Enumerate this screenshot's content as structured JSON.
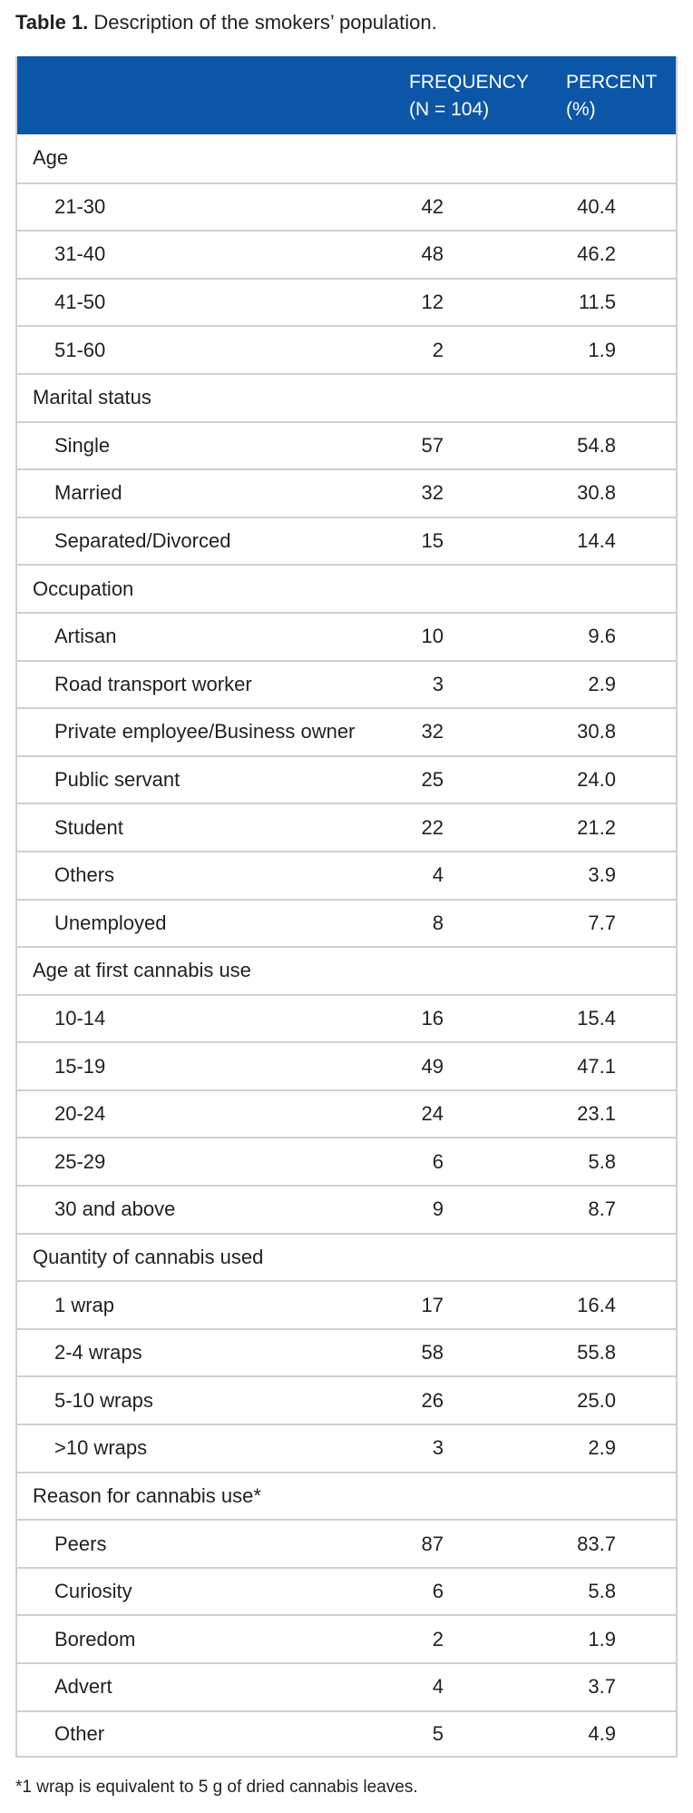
{
  "caption": {
    "label": "Table 1.",
    "text": "Description of the smokers’ population."
  },
  "table": {
    "header": {
      "col_frequency_line1": "FREQUENCY",
      "col_frequency_line2": "(N = 104)",
      "col_percent_line1": "PERCENT",
      "col_percent_line2": "(%)"
    },
    "rows": [
      {
        "type": "section",
        "label": "Age"
      },
      {
        "type": "item",
        "label": "21-30",
        "frequency": "42",
        "percent": "40.4"
      },
      {
        "type": "item",
        "label": "31-40",
        "frequency": "48",
        "percent": "46.2"
      },
      {
        "type": "item",
        "label": "41-50",
        "frequency": "12",
        "percent": "11.5"
      },
      {
        "type": "item",
        "label": "51-60",
        "frequency": "2",
        "percent": "1.9"
      },
      {
        "type": "section",
        "label": "Marital status"
      },
      {
        "type": "item",
        "label": "Single",
        "frequency": "57",
        "percent": "54.8"
      },
      {
        "type": "item",
        "label": "Married",
        "frequency": "32",
        "percent": "30.8"
      },
      {
        "type": "item",
        "label": "Separated/Divorced",
        "frequency": "15",
        "percent": "14.4"
      },
      {
        "type": "section",
        "label": "Occupation"
      },
      {
        "type": "item",
        "label": "Artisan",
        "frequency": "10",
        "percent": "9.6"
      },
      {
        "type": "item",
        "label": "Road transport worker",
        "frequency": "3",
        "percent": "2.9"
      },
      {
        "type": "item",
        "label": "Private employee/Business owner",
        "frequency": "32",
        "percent": "30.8"
      },
      {
        "type": "item",
        "label": "Public servant",
        "frequency": "25",
        "percent": "24.0"
      },
      {
        "type": "item",
        "label": "Student",
        "frequency": "22",
        "percent": "21.2"
      },
      {
        "type": "item",
        "label": "Others",
        "frequency": "4",
        "percent": "3.9"
      },
      {
        "type": "item",
        "label": "Unemployed",
        "frequency": "8",
        "percent": "7.7"
      },
      {
        "type": "section",
        "label": "Age at first cannabis use"
      },
      {
        "type": "item",
        "label": "10-14",
        "frequency": "16",
        "percent": "15.4"
      },
      {
        "type": "item",
        "label": "15-19",
        "frequency": "49",
        "percent": "47.1"
      },
      {
        "type": "item",
        "label": "20-24",
        "frequency": "24",
        "percent": "23.1"
      },
      {
        "type": "item",
        "label": "25-29",
        "frequency": "6",
        "percent": "5.8"
      },
      {
        "type": "item",
        "label": "30 and above",
        "frequency": "9",
        "percent": "8.7"
      },
      {
        "type": "section",
        "label": "Quantity of cannabis used"
      },
      {
        "type": "item",
        "label": "1 wrap",
        "frequency": "17",
        "percent": "16.4"
      },
      {
        "type": "item",
        "label": "2-4 wraps",
        "frequency": "58",
        "percent": "55.8"
      },
      {
        "type": "item",
        "label": "5-10 wraps",
        "frequency": "26",
        "percent": "25.0"
      },
      {
        "type": "item",
        "label": ">10 wraps",
        "frequency": "3",
        "percent": "2.9"
      },
      {
        "type": "section",
        "label": "Reason for cannabis use*"
      },
      {
        "type": "item",
        "label": "Peers",
        "frequency": "87",
        "percent": "83.7"
      },
      {
        "type": "item",
        "label": "Curiosity",
        "frequency": "6",
        "percent": "5.8"
      },
      {
        "type": "item",
        "label": "Boredom",
        "frequency": "2",
        "percent": "1.9"
      },
      {
        "type": "item",
        "label": "Advert",
        "frequency": "4",
        "percent": "3.7"
      },
      {
        "type": "item",
        "label": "Other",
        "frequency": "5",
        "percent": "4.9"
      }
    ]
  },
  "footnote": "*1 wrap is equivalent to 5 g of dried cannabis leaves.",
  "colors": {
    "header_bg": "#0c56a8",
    "header_text": "#ffffff",
    "rule": "#cfcfcf",
    "text": "#231f20"
  }
}
